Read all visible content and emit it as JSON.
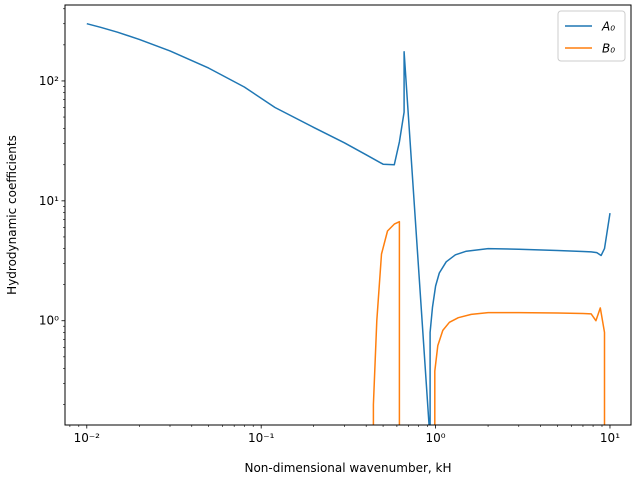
{
  "chart_data": {
    "type": "line",
    "xscale": "log",
    "yscale": "log",
    "xlabel": "Non-dimensional wavenumber, kH",
    "ylabel": "Hydrodynamic coefficients",
    "xlim": [
      0.0075,
      13.2
    ],
    "ylim": [
      0.135,
      430
    ],
    "x_ticks": [
      {
        "value": 0.01,
        "label": "10⁻²"
      },
      {
        "value": 0.1,
        "label": "10⁻¹"
      },
      {
        "value": 1,
        "label": "10⁰"
      },
      {
        "value": 10,
        "label": "10¹"
      }
    ],
    "y_ticks": [
      {
        "value": 1,
        "label": "10⁰"
      },
      {
        "value": 10,
        "label": "10¹"
      },
      {
        "value": 100,
        "label": "10²"
      }
    ],
    "grid": false,
    "legend_position": "top-right",
    "series": [
      {
        "name": "A₀",
        "color": "#1f77b4",
        "x": [
          0.01,
          0.012,
          0.015,
          0.02,
          0.03,
          0.05,
          0.08,
          0.12,
          0.2,
          0.3,
          0.4,
          0.5,
          0.58,
          0.62,
          0.66,
          0.66,
          0.93,
          0.93,
          0.96,
          1.0,
          1.05,
          1.15,
          1.3,
          1.5,
          2.0,
          3.0,
          5.0,
          7.0,
          7.8,
          8.4,
          8.9,
          9.3,
          10.0
        ],
        "y": [
          300,
          280,
          255,
          222,
          178,
          128,
          89,
          60,
          41,
          30.5,
          24.2,
          20.2,
          20.0,
          31,
          55,
          175,
          0.1,
          0.8,
          1.3,
          1.95,
          2.5,
          3.1,
          3.55,
          3.8,
          4.0,
          3.95,
          3.85,
          3.78,
          3.75,
          3.7,
          3.5,
          4.0,
          7.9
        ]
      },
      {
        "name": "B₀",
        "color": "#ff7f0e",
        "x": [
          0.44,
          0.44,
          0.46,
          0.49,
          0.53,
          0.58,
          0.62,
          0.62,
          0.99,
          0.99,
          1.03,
          1.1,
          1.2,
          1.35,
          1.6,
          2.0,
          3.0,
          5.0,
          7.0,
          7.8,
          8.3,
          8.8,
          9.3,
          9.3
        ],
        "y": [
          0.1,
          0.2,
          1.0,
          3.6,
          5.6,
          6.4,
          6.7,
          0.1,
          0.1,
          0.38,
          0.62,
          0.83,
          0.97,
          1.06,
          1.13,
          1.17,
          1.17,
          1.16,
          1.15,
          1.14,
          1.0,
          1.28,
          0.8,
          0.1
        ]
      }
    ]
  }
}
